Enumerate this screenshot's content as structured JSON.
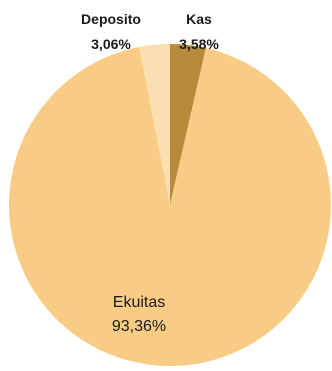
{
  "chart_data": {
    "type": "pie",
    "slices": [
      {
        "label": "Kas",
        "value_text": "3,58%",
        "value": 3.58,
        "color": "#b58a3a"
      },
      {
        "label": "Ekuitas",
        "value_text": "93,36%",
        "value": 93.36,
        "color": "#f8cc85"
      },
      {
        "label": "Deposito",
        "value_text": "3,06%",
        "value": 3.06,
        "color": "#fbdfb3"
      }
    ],
    "start": "top, clockwise"
  }
}
